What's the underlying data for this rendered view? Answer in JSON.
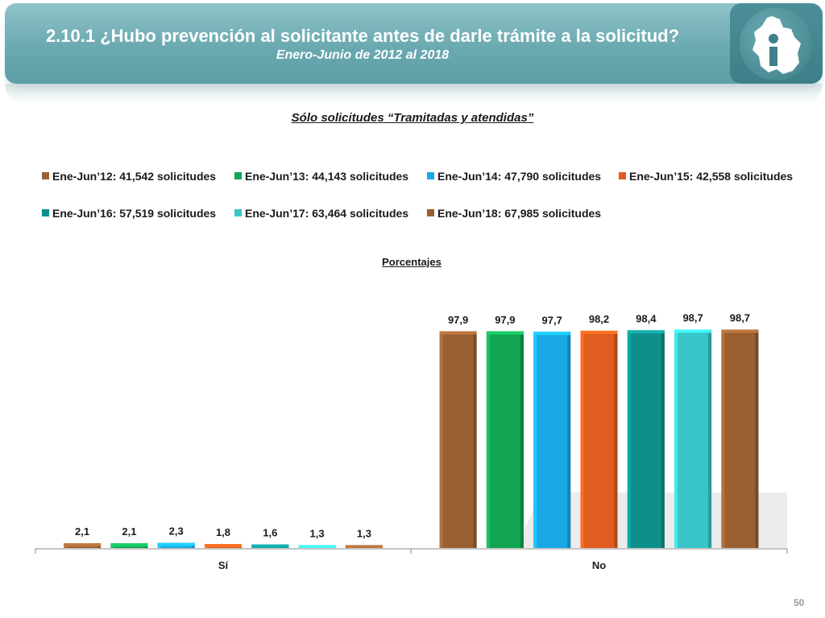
{
  "header": {
    "title": "2.10.1 ¿Hubo prevención al solicitante antes de darle trámite a la solicitud?",
    "subtitle": "Enero-Junio de 2012 al 2018"
  },
  "logo": {
    "icon": "cdmx-map-info-icon"
  },
  "section_title": "Sólo solicitudes “Tramitadas y atendidas”",
  "unit_label": "Porcentajes",
  "page_number": "50",
  "chart_data": {
    "type": "bar",
    "categories": [
      "Sí",
      "No"
    ],
    "ylim": [
      0,
      100
    ],
    "grid": false,
    "legend_position": "top",
    "series": [
      {
        "name": "Ene-Jun’12: 41,542 solicitudes",
        "color": "#9a6032",
        "values": [
          2.1,
          97.9
        ],
        "labels": [
          "2,1",
          "97,9"
        ]
      },
      {
        "name": "Ene-Jun’13: 44,143 solicitudes",
        "color": "#13a652",
        "values": [
          2.1,
          97.9
        ],
        "labels": [
          "2,1",
          "97,9"
        ]
      },
      {
        "name": "Ene-Jun’14: 47,790 solicitudes",
        "color": "#19a8e6",
        "values": [
          2.3,
          97.7
        ],
        "labels": [
          "2,3",
          "97,7"
        ]
      },
      {
        "name": "Ene-Jun’15: 42,558 solicitudes",
        "color": "#e05c1f",
        "values": [
          1.8,
          98.2
        ],
        "labels": [
          "1,8",
          "98,2"
        ]
      },
      {
        "name": "Ene-Jun’16: 57,519 solicitudes",
        "color": "#0f8f8c",
        "values": [
          1.6,
          98.4
        ],
        "labels": [
          "1,6",
          "98,4"
        ]
      },
      {
        "name": "Ene-Jun’17: 63,464 solicitudes",
        "color": "#37c6c8",
        "values": [
          1.3,
          98.7
        ],
        "labels": [
          "1,3",
          "98,7"
        ]
      },
      {
        "name": "Ene-Jun’18: 67,985 solicitudes",
        "color": "#9a6032",
        "values": [
          1.3,
          98.7
        ],
        "labels": [
          "1,3",
          "98,7"
        ]
      }
    ]
  }
}
